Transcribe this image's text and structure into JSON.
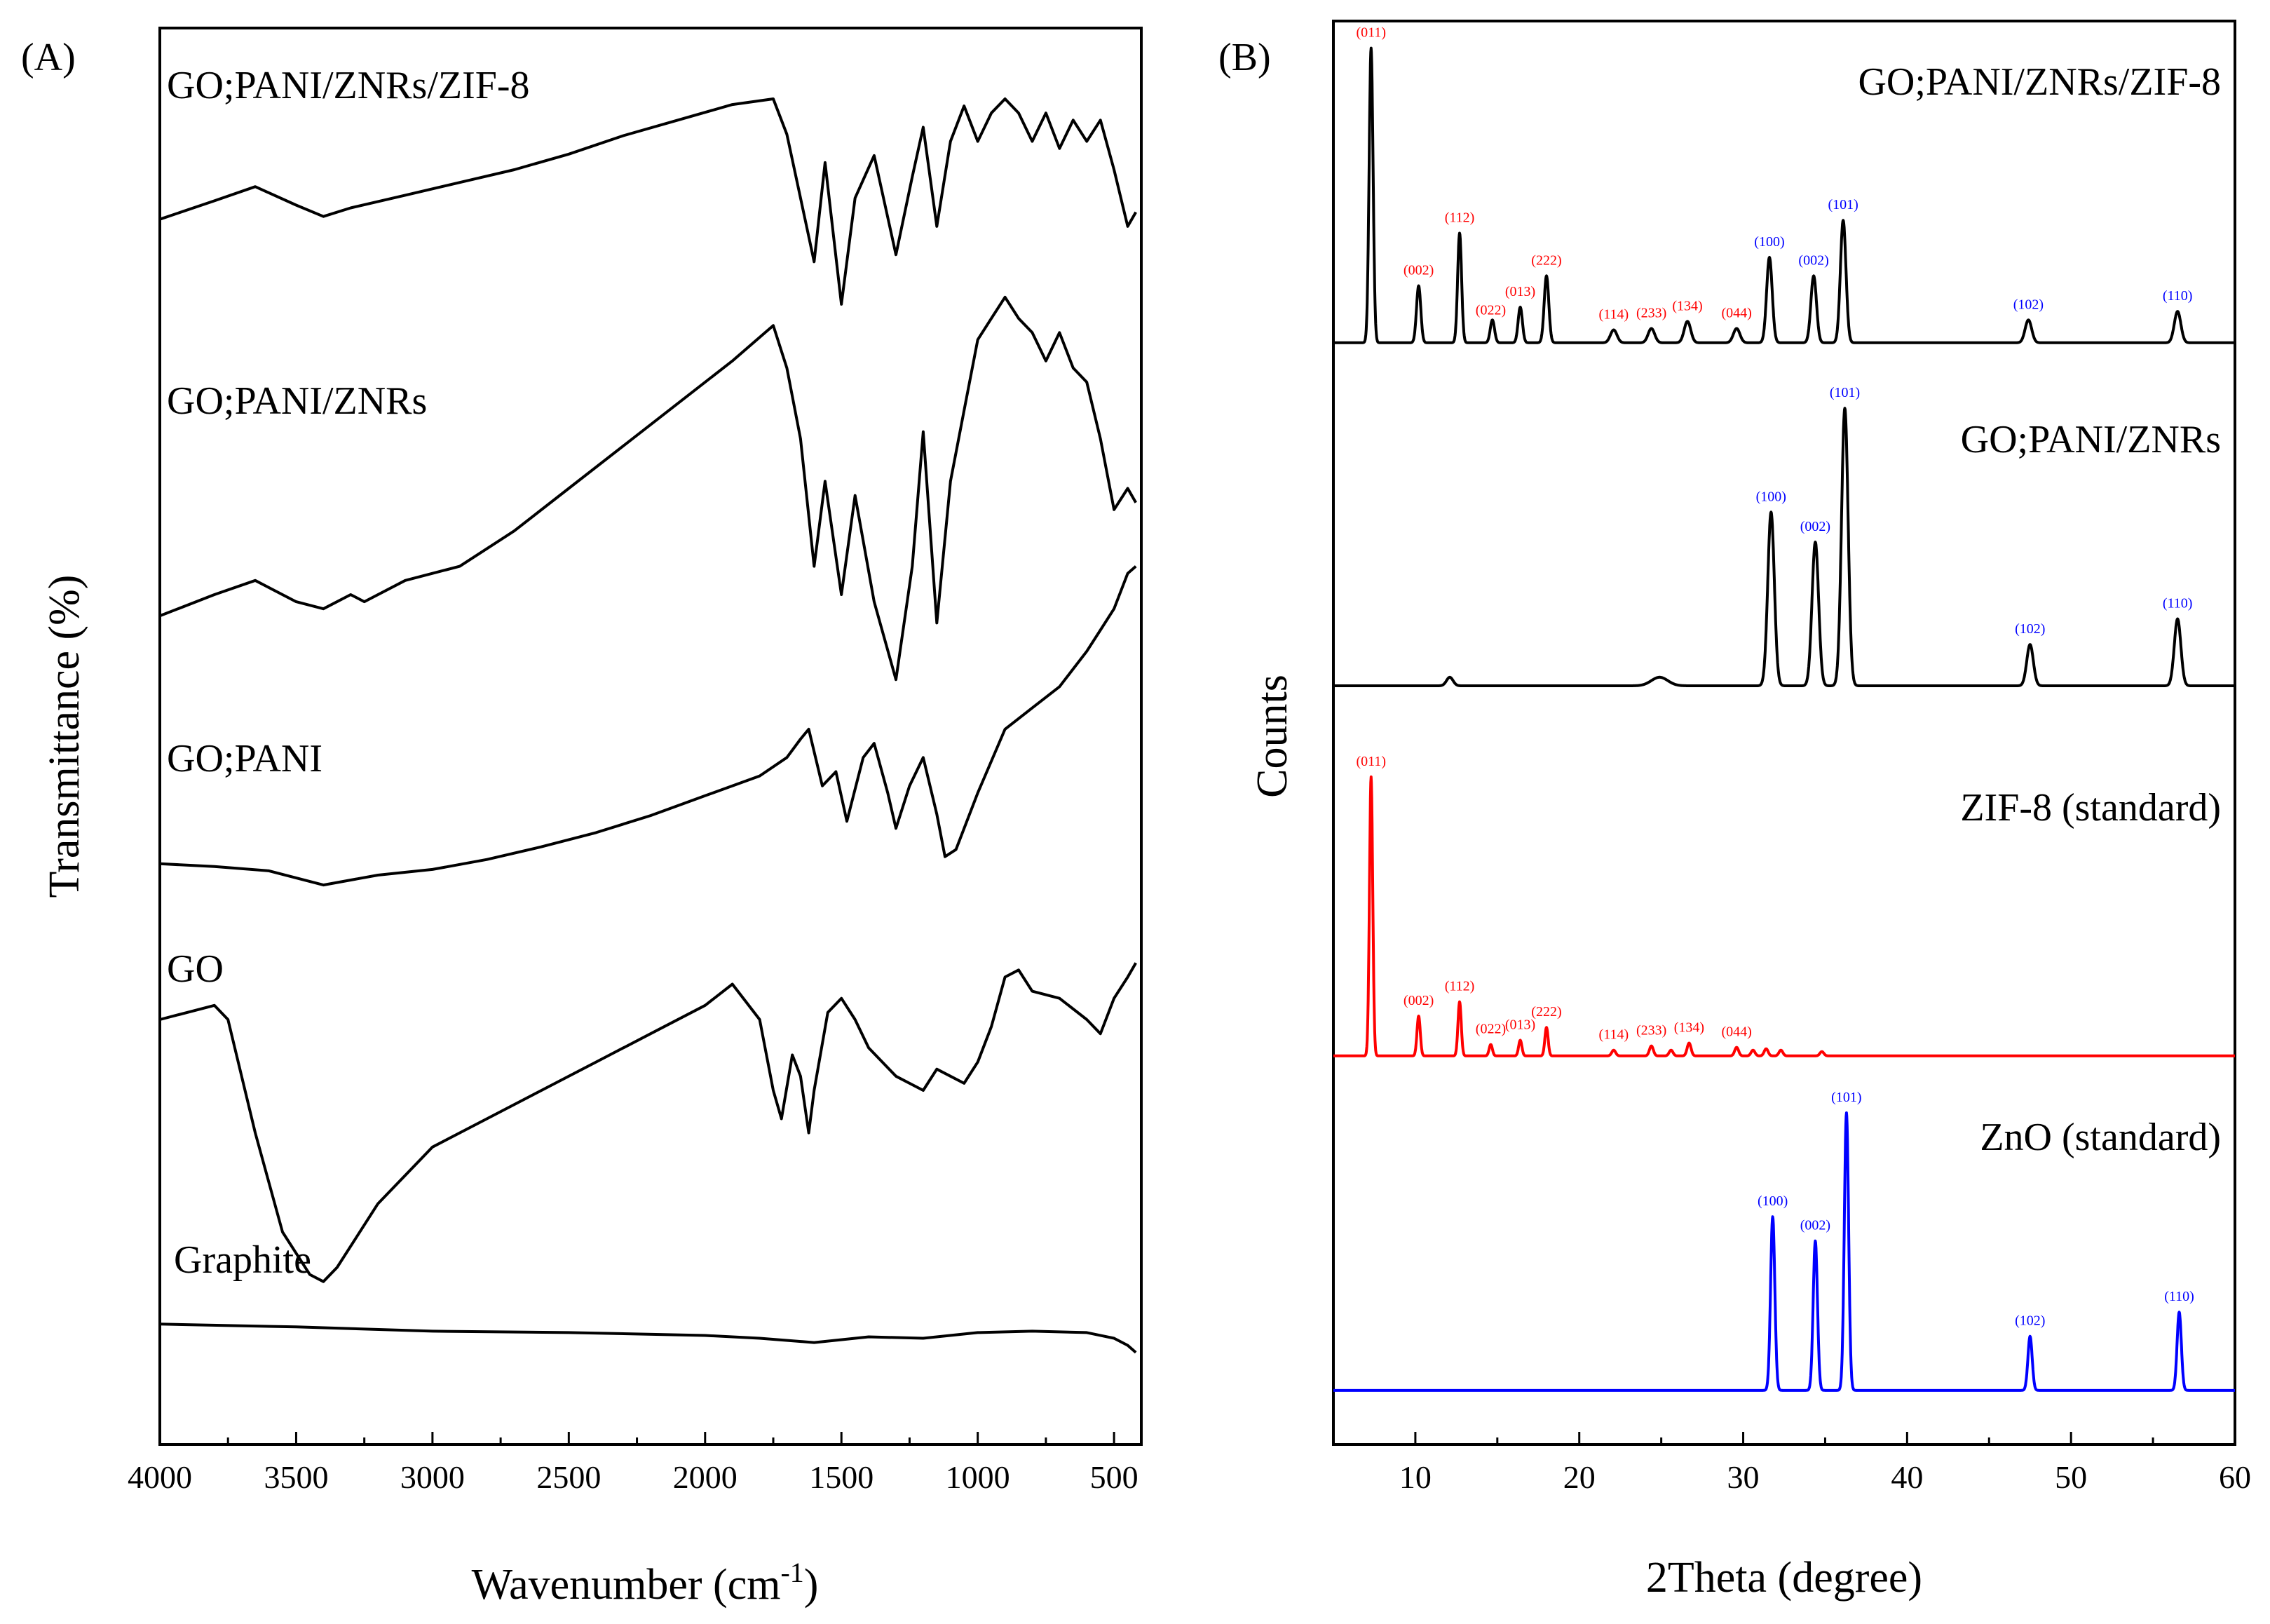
{
  "panel_a": {
    "label": "(A)",
    "xlabel": "Wavenumber (cm",
    "xlabel_sup": "-1",
    "xlabel_close": ")",
    "ylabel": "Transmittance (%)"
  },
  "panel_b": {
    "label": "(B)",
    "xlabel": "2Theta (degree)",
    "ylabel": "Counts"
  },
  "colors": {
    "black": "#000000",
    "red": "#ff0000",
    "blue": "#0000ff"
  },
  "chart_data": [
    {
      "type": "line",
      "title": "(A)",
      "xlabel": "Wavenumber (cm-1)",
      "ylabel": "Transmittance (%)",
      "xlim": [
        4000,
        400
      ],
      "xticks": [
        4000,
        3500,
        3000,
        2500,
        2000,
        1500,
        1000,
        500
      ],
      "ylim": [
        0,
        100
      ],
      "series": [
        {
          "name": "GO;PANI/ZNRs/ZIF-8",
          "x": [
            4000,
            3800,
            3650,
            3500,
            3400,
            3300,
            3100,
            2900,
            2700,
            2500,
            2300,
            2100,
            1900,
            1750,
            1700,
            1650,
            1600,
            1560,
            1500,
            1450,
            1380,
            1300,
            1240,
            1200,
            1150,
            1100,
            1050,
            1000,
            950,
            900,
            850,
            800,
            750,
            700,
            650,
            600,
            550,
            500,
            450,
            420
          ],
          "y": [
            86.5,
            87.8,
            88.8,
            87.5,
            86.7,
            87.3,
            88.2,
            89.1,
            90.0,
            91.1,
            92.4,
            93.5,
            94.6,
            95.0,
            92.5,
            88.0,
            83.5,
            90.5,
            80.5,
            88.0,
            91.0,
            84.0,
            89.5,
            93.0,
            86.0,
            92.0,
            94.5,
            92.0,
            94.0,
            95.0,
            94.0,
            92.0,
            94.0,
            91.5,
            93.5,
            92.0,
            93.5,
            90.0,
            86.0,
            87.0
          ]
        },
        {
          "name": "GO;PANI/ZNRs",
          "x": [
            4000,
            3800,
            3650,
            3500,
            3400,
            3300,
            3250,
            3100,
            2900,
            2700,
            2500,
            2300,
            2100,
            1900,
            1750,
            1700,
            1650,
            1600,
            1560,
            1500,
            1450,
            1380,
            1300,
            1240,
            1200,
            1150,
            1100,
            1050,
            1000,
            950,
            900,
            850,
            800,
            750,
            700,
            650,
            600,
            550,
            500,
            450,
            420
          ],
          "y": [
            58.5,
            60.0,
            61.0,
            59.5,
            59.0,
            60.0,
            59.5,
            61.0,
            62.0,
            64.5,
            67.5,
            70.5,
            73.5,
            76.5,
            79.0,
            76.0,
            71.0,
            62.0,
            68.0,
            60.0,
            67.0,
            59.5,
            54.0,
            62.0,
            71.5,
            58.0,
            68.0,
            73.0,
            78.0,
            79.5,
            81.0,
            79.5,
            78.5,
            76.5,
            78.5,
            76.0,
            75.0,
            71.0,
            66.0,
            67.5,
            66.5
          ]
        },
        {
          "name": "GO;PANI",
          "x": [
            4000,
            3800,
            3600,
            3400,
            3200,
            3000,
            2800,
            2600,
            2400,
            2200,
            2000,
            1800,
            1700,
            1650,
            1620,
            1570,
            1520,
            1480,
            1420,
            1380,
            1330,
            1300,
            1250,
            1200,
            1150,
            1120,
            1080,
            1000,
            900,
            800,
            700,
            600,
            550,
            500,
            450,
            420
          ],
          "y": [
            41.0,
            40.8,
            40.5,
            39.5,
            40.2,
            40.6,
            41.3,
            42.2,
            43.2,
            44.4,
            45.8,
            47.2,
            48.5,
            49.8,
            50.5,
            46.5,
            47.5,
            44.0,
            48.5,
            49.5,
            46.0,
            43.5,
            46.5,
            48.5,
            44.5,
            41.5,
            42.0,
            46.0,
            50.5,
            52.0,
            53.5,
            56.0,
            57.5,
            59.0,
            61.5,
            62.0
          ]
        },
        {
          "name": "GO",
          "x": [
            4000,
            3900,
            3800,
            3750,
            3650,
            3550,
            3450,
            3400,
            3350,
            3200,
            3000,
            2800,
            2600,
            2400,
            2200,
            2000,
            1900,
            1800,
            1750,
            1720,
            1680,
            1650,
            1620,
            1600,
            1550,
            1500,
            1450,
            1400,
            1350,
            1300,
            1250,
            1200,
            1150,
            1100,
            1050,
            1000,
            950,
            900,
            850,
            800,
            700,
            600,
            550,
            500,
            450,
            420
          ],
          "y": [
            30.0,
            30.5,
            31.0,
            30.0,
            22.0,
            15.0,
            12.0,
            11.5,
            12.5,
            17.0,
            21.0,
            23.0,
            25.0,
            27.0,
            29.0,
            31.0,
            32.5,
            30.0,
            25.0,
            23.0,
            27.5,
            26.0,
            22.0,
            25.0,
            30.5,
            31.5,
            30.0,
            28.0,
            27.0,
            26.0,
            25.5,
            25.0,
            26.5,
            26.0,
            25.5,
            27.0,
            29.5,
            33.0,
            33.5,
            32.0,
            31.5,
            30.0,
            29.0,
            31.5,
            33.0,
            34.0
          ]
        },
        {
          "name": "Graphite",
          "x": [
            4000,
            3500,
            3000,
            2500,
            2000,
            1800,
            1600,
            1400,
            1200,
            1000,
            800,
            600,
            500,
            450,
            420
          ],
          "y": [
            8.5,
            8.3,
            8.0,
            7.9,
            7.7,
            7.5,
            7.2,
            7.6,
            7.5,
            7.9,
            8.0,
            7.9,
            7.5,
            7.0,
            6.5
          ]
        }
      ],
      "labels": [
        "GO;PANI/ZNRs/ZIF-8",
        "GO;PANI/ZNRs",
        "GO;PANI",
        "GO",
        "Graphite"
      ]
    },
    {
      "type": "line",
      "title": "(B)",
      "xlabel": "2Theta (degree)",
      "ylabel": "Counts",
      "xlim": [
        5,
        60
      ],
      "xticks": [
        10,
        20,
        30,
        40,
        50,
        60
      ],
      "ylim": [
        0,
        100
      ],
      "series": [
        {
          "name": "GO;PANI/ZNRs/ZIF-8",
          "color": "#000000",
          "baseline": 77.4,
          "peaks": [
            {
              "x": 7.3,
              "h": 20.7,
              "w": 0.12
            },
            {
              "x": 10.2,
              "h": 4.0,
              "w": 0.13
            },
            {
              "x": 12.7,
              "h": 7.7,
              "w": 0.12
            },
            {
              "x": 14.7,
              "h": 1.6,
              "w": 0.13
            },
            {
              "x": 16.4,
              "h": 2.5,
              "w": 0.13
            },
            {
              "x": 18.0,
              "h": 4.7,
              "w": 0.14
            },
            {
              "x": 22.1,
              "h": 0.9,
              "w": 0.2
            },
            {
              "x": 24.4,
              "h": 1.0,
              "w": 0.2
            },
            {
              "x": 26.6,
              "h": 1.5,
              "w": 0.2
            },
            {
              "x": 29.6,
              "h": 1.0,
              "w": 0.2
            },
            {
              "x": 31.6,
              "h": 6.0,
              "w": 0.17
            },
            {
              "x": 34.3,
              "h": 4.7,
              "w": 0.17
            },
            {
              "x": 36.1,
              "h": 8.6,
              "w": 0.17
            },
            {
              "x": 47.4,
              "h": 1.6,
              "w": 0.2
            },
            {
              "x": 56.5,
              "h": 2.2,
              "w": 0.2
            }
          ],
          "annotations": [
            {
              "text": "(011)",
              "x": 7.3,
              "color": "#ff0000"
            },
            {
              "text": "(002)",
              "x": 10.2,
              "color": "#ff0000"
            },
            {
              "text": "(112)",
              "x": 12.7,
              "color": "#ff0000"
            },
            {
              "text": "(022)",
              "x": 14.6,
              "color": "#ff0000"
            },
            {
              "text": "(013)",
              "x": 16.4,
              "color": "#ff0000"
            },
            {
              "text": "(222)",
              "x": 18.0,
              "color": "#ff0000"
            },
            {
              "text": "(114)",
              "x": 22.1,
              "color": "#ff0000"
            },
            {
              "text": "(233)",
              "x": 24.4,
              "color": "#ff0000"
            },
            {
              "text": "(134)",
              "x": 26.6,
              "color": "#ff0000"
            },
            {
              "text": "(044)",
              "x": 29.6,
              "color": "#ff0000"
            },
            {
              "text": "(100)",
              "x": 31.6,
              "color": "#0000ff"
            },
            {
              "text": "(002)",
              "x": 34.3,
              "color": "#0000ff"
            },
            {
              "text": "(101)",
              "x": 36.1,
              "color": "#0000ff"
            },
            {
              "text": "(102)",
              "x": 47.4,
              "color": "#0000ff"
            },
            {
              "text": "(110)",
              "x": 56.5,
              "color": "#0000ff"
            }
          ]
        },
        {
          "name": "GO;PANI/ZNRs",
          "color": "#000000",
          "baseline": 53.3,
          "peaks": [
            {
              "x": 12.1,
              "h": 0.6,
              "w": 0.2
            },
            {
              "x": 24.9,
              "h": 0.6,
              "w": 0.5
            },
            {
              "x": 31.7,
              "h": 12.2,
              "w": 0.2
            },
            {
              "x": 34.4,
              "h": 10.1,
              "w": 0.2
            },
            {
              "x": 36.2,
              "h": 19.5,
              "w": 0.2
            },
            {
              "x": 47.5,
              "h": 2.9,
              "w": 0.2
            },
            {
              "x": 56.5,
              "h": 4.7,
              "w": 0.2
            }
          ],
          "annotations": [
            {
              "text": "(100)",
              "x": 31.7,
              "color": "#0000ff"
            },
            {
              "text": "(002)",
              "x": 34.4,
              "color": "#0000ff"
            },
            {
              "text": "(101)",
              "x": 36.2,
              "color": "#0000ff"
            },
            {
              "text": "(102)",
              "x": 47.5,
              "color": "#0000ff"
            },
            {
              "text": "(110)",
              "x": 56.5,
              "color": "#0000ff"
            }
          ]
        },
        {
          "name": "ZIF-8 (standard)",
          "color": "#ff0000",
          "baseline": 27.3,
          "peaks": [
            {
              "x": 7.3,
              "h": 19.6,
              "w": 0.1
            },
            {
              "x": 10.2,
              "h": 2.8,
              "w": 0.1
            },
            {
              "x": 12.7,
              "h": 3.8,
              "w": 0.1
            },
            {
              "x": 14.6,
              "h": 0.8,
              "w": 0.1
            },
            {
              "x": 16.4,
              "h": 1.1,
              "w": 0.1
            },
            {
              "x": 18.0,
              "h": 2.0,
              "w": 0.1
            },
            {
              "x": 22.1,
              "h": 0.4,
              "w": 0.12
            },
            {
              "x": 24.4,
              "h": 0.7,
              "w": 0.12
            },
            {
              "x": 25.6,
              "h": 0.4,
              "w": 0.12
            },
            {
              "x": 26.7,
              "h": 0.9,
              "w": 0.12
            },
            {
              "x": 29.6,
              "h": 0.6,
              "w": 0.12
            },
            {
              "x": 30.6,
              "h": 0.4,
              "w": 0.12
            },
            {
              "x": 31.4,
              "h": 0.5,
              "w": 0.12
            },
            {
              "x": 32.3,
              "h": 0.4,
              "w": 0.12
            },
            {
              "x": 34.8,
              "h": 0.3,
              "w": 0.12
            }
          ],
          "annotations": [
            {
              "text": "(011)",
              "x": 7.3,
              "color": "#ff0000"
            },
            {
              "text": "(002)",
              "x": 10.2,
              "color": "#ff0000"
            },
            {
              "text": "(112)",
              "x": 12.7,
              "color": "#ff0000"
            },
            {
              "text": "(022)",
              "x": 14.6,
              "color": "#ff0000"
            },
            {
              "text": "(013)",
              "x": 16.4,
              "color": "#ff0000"
            },
            {
              "text": "(222)",
              "x": 18.0,
              "color": "#ff0000"
            },
            {
              "text": "(114)",
              "x": 22.1,
              "color": "#ff0000"
            },
            {
              "text": "(233)",
              "x": 24.4,
              "color": "#ff0000"
            },
            {
              "text": "(134)",
              "x": 26.7,
              "color": "#ff0000"
            },
            {
              "text": "(044)",
              "x": 29.6,
              "color": "#ff0000"
            }
          ]
        },
        {
          "name": "ZnO (standard)",
          "color": "#0000ff",
          "baseline": 3.8,
          "peaks": [
            {
              "x": 31.8,
              "h": 12.2,
              "w": 0.13
            },
            {
              "x": 34.4,
              "h": 10.5,
              "w": 0.13
            },
            {
              "x": 36.3,
              "h": 19.5,
              "w": 0.13
            },
            {
              "x": 47.5,
              "h": 3.8,
              "w": 0.13
            },
            {
              "x": 56.6,
              "h": 5.5,
              "w": 0.13
            }
          ],
          "annotations": [
            {
              "text": "(100)",
              "x": 31.8,
              "color": "#0000ff"
            },
            {
              "text": "(002)",
              "x": 34.4,
              "color": "#0000ff"
            },
            {
              "text": "(101)",
              "x": 36.3,
              "color": "#0000ff"
            },
            {
              "text": "(102)",
              "x": 47.5,
              "color": "#0000ff"
            },
            {
              "text": "(110)",
              "x": 56.6,
              "color": "#0000ff"
            }
          ]
        }
      ],
      "labels": [
        "GO;PANI/ZNRs/ZIF-8",
        "GO;PANI/ZNRs",
        "ZIF-8 (standard)",
        "ZnO (standard)"
      ]
    }
  ]
}
